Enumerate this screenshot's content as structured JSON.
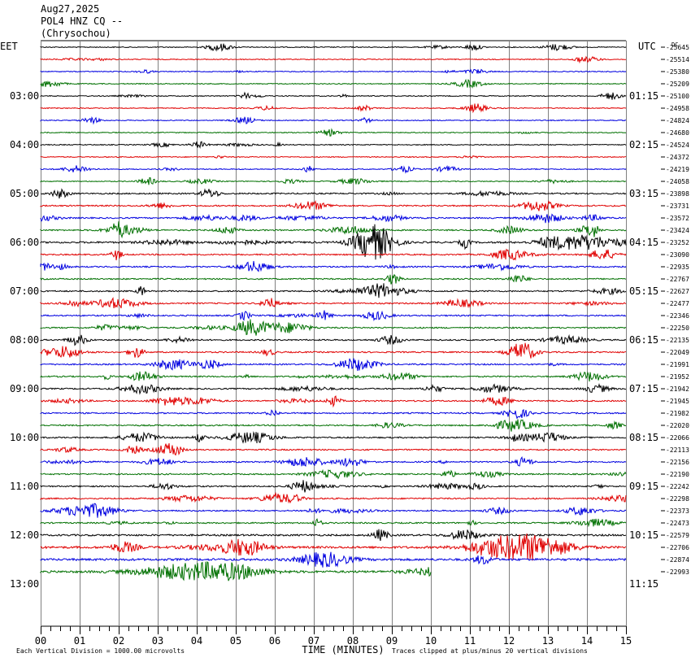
{
  "header": {
    "date": "Aug27,2025",
    "station": "POL4 HNZ CQ --",
    "location": "(Chrysochou)"
  },
  "chart_data": {
    "type": "line",
    "subtype": "helicorder",
    "left_label": "EET",
    "right_label": "UTC",
    "dc_label": "DC",
    "xlabel": "TIME (MINUTES)",
    "x_ticks": [
      "00",
      "01",
      "02",
      "03",
      "04",
      "05",
      "06",
      "07",
      "08",
      "09",
      "10",
      "11",
      "12",
      "13",
      "14",
      "15"
    ],
    "xlim": [
      0,
      15
    ],
    "left_hour_labels": [
      "03:00",
      "04:00",
      "05:00",
      "06:00",
      "07:00",
      "08:00",
      "09:00",
      "10:00",
      "11:00",
      "12:00",
      "13:00"
    ],
    "right_hour_labels": [
      "01:15",
      "02:15",
      "03:15",
      "04:15",
      "05:15",
      "06:15",
      "07:15",
      "08:15",
      "09:15",
      "10:15",
      "11:15"
    ],
    "first_hour_label_row": 4,
    "rows_per_hour": 4,
    "row_colors": [
      "#000000",
      "#e00000",
      "#0000e0",
      "#007000"
    ],
    "total_rows": 44,
    "data_rows": 44,
    "last_row_end_minute": 10,
    "dc_offsets": [
      "-25645",
      "-25514",
      "-25380",
      "-25209",
      "-25100",
      "-24958",
      "-24824",
      "-24680",
      "-24524",
      "-24372",
      "-24219",
      "-24058",
      "-23898",
      "-23731",
      "-23572",
      "-23424",
      "-23252",
      "-23090",
      "-22935",
      "-22767",
      "-22627",
      "-22477",
      "-22346",
      "-22250",
      "-22135",
      "-22049",
      "-21991",
      "-21952",
      "-21942",
      "-21945",
      "-21982",
      "-22020",
      "-22066",
      "-22113",
      "-22156",
      "-22190",
      "-22242",
      "-22298",
      "-22373",
      "-22473",
      "-22579",
      "-22706",
      "-22874",
      "-22993"
    ],
    "activity_level": [
      1,
      1,
      1,
      1,
      1,
      1,
      1,
      1,
      1,
      1,
      1,
      1,
      2,
      2,
      2,
      2,
      3,
      2,
      2,
      2,
      2,
      2,
      2,
      2,
      2,
      2,
      2,
      2,
      2,
      2,
      2,
      2,
      2,
      2,
      2,
      2,
      2,
      2,
      2,
      2,
      3,
      4,
      4,
      4
    ],
    "footer_left": "Each Vertical Division = 1000.00 microvolts",
    "footer_right": "Traces clipped at plus/minus 20 vertical divisions"
  }
}
